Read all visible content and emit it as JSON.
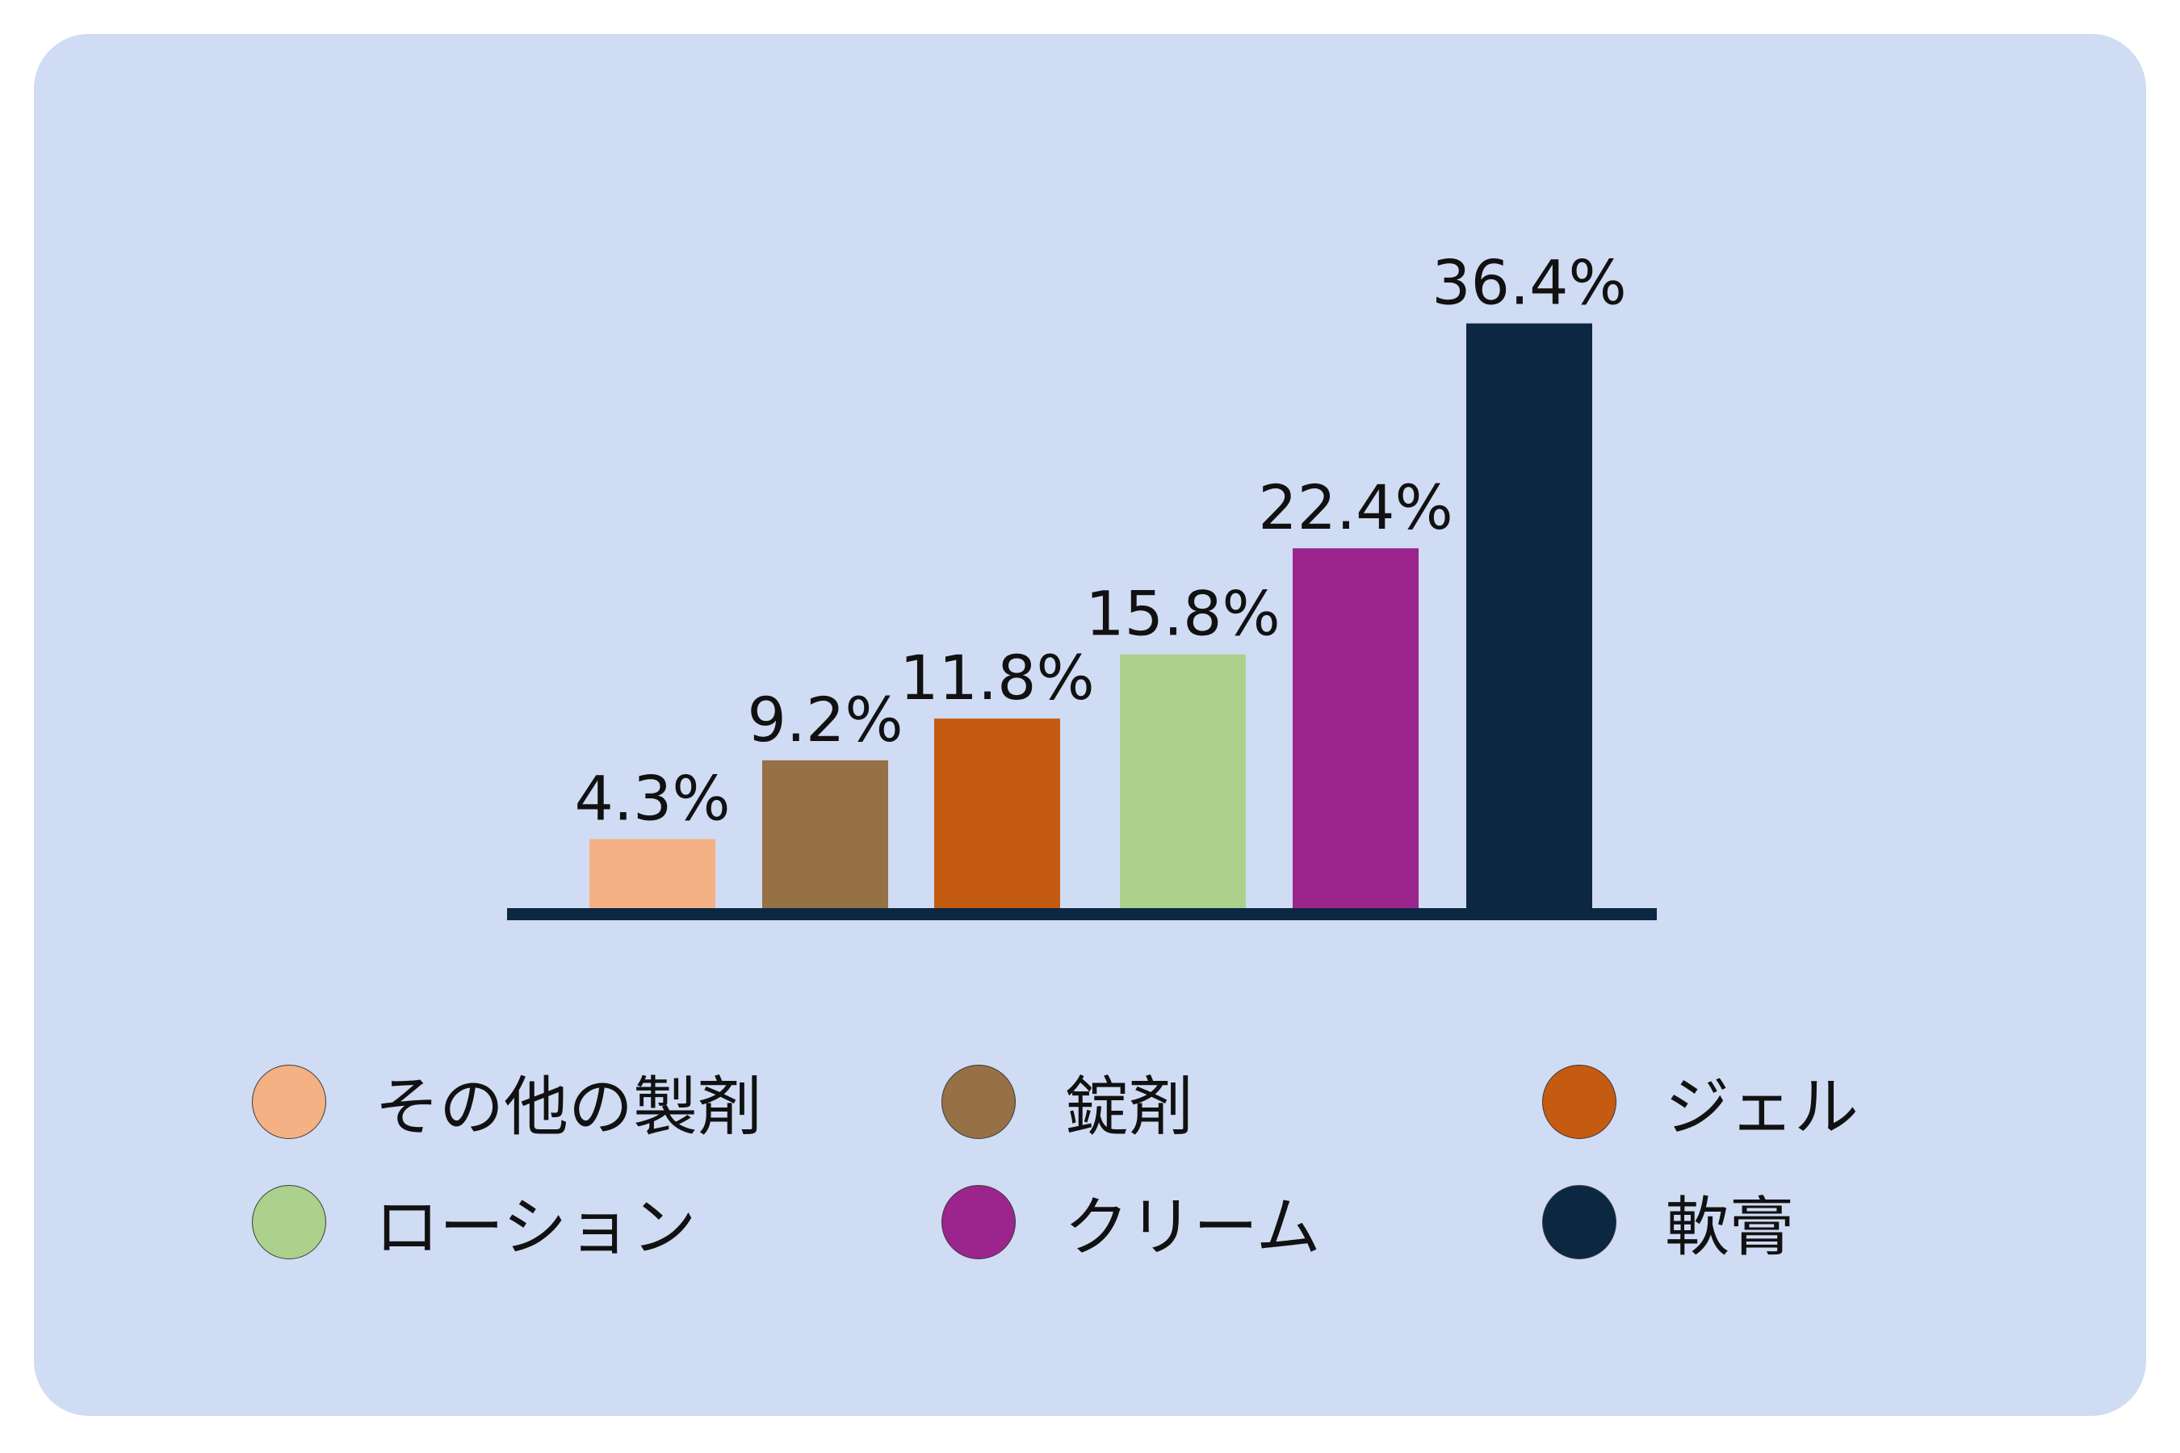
{
  "chart_data": {
    "type": "bar",
    "categories": [
      "その他の製剤",
      "錠剤",
      "ジェル",
      "ローション",
      "クリーム",
      "軟膏"
    ],
    "values": [
      4.3,
      9.2,
      11.8,
      15.8,
      22.4,
      36.4
    ],
    "value_labels": [
      "4.3%",
      "9.2%",
      "11.8%",
      "15.8%",
      "22.4%",
      "36.4%"
    ],
    "colors": [
      "#f4b183",
      "#957145",
      "#c55a11",
      "#acd18c",
      "#9b258c",
      "#0b2742"
    ],
    "title": "",
    "xlabel": "",
    "ylabel": "",
    "ylim": [
      0,
      40
    ],
    "grid": false,
    "legend": "bottom"
  },
  "legend": {
    "items": [
      {
        "label": "その他の製剤",
        "color": "#f4b183"
      },
      {
        "label": "錠剤",
        "color": "#957145"
      },
      {
        "label": "ジェル",
        "color": "#c55a11"
      },
      {
        "label": "ローション",
        "color": "#acd18c"
      },
      {
        "label": "クリーム",
        "color": "#9b258c"
      },
      {
        "label": "軟膏",
        "color": "#0b2742"
      }
    ]
  },
  "colors": {
    "panel_background": "#d0dcf4",
    "baseline": "#0b2742",
    "label_text": "#111111"
  }
}
